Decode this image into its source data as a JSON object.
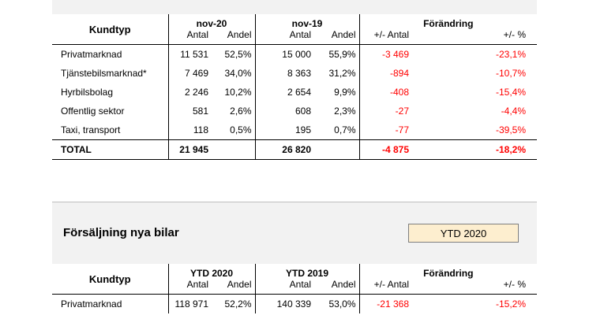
{
  "table1": {
    "col_kundtyp": "Kundtyp",
    "period1": "nov-20",
    "period2": "nov-19",
    "change": "Förändring",
    "sub_antal": "Antal",
    "sub_andel": "Andel",
    "sub_diff": "+/- Antal",
    "sub_pct": "+/- %",
    "rows": [
      {
        "label": "Privatmarknad",
        "a1": "11 531",
        "s1": "52,5%",
        "a2": "15 000",
        "s2": "55,9%",
        "d": "-3 469",
        "p": "-23,1%"
      },
      {
        "label": "Tjänstebilsmarknad*",
        "a1": "7 469",
        "s1": "34,0%",
        "a2": "8 363",
        "s2": "31,2%",
        "d": "-894",
        "p": "-10,7%"
      },
      {
        "label": "Hyrbilsbolag",
        "a1": "2 246",
        "s1": "10,2%",
        "a2": "2 654",
        "s2": "9,9%",
        "d": "-408",
        "p": "-15,4%"
      },
      {
        "label": "Offentlig sektor",
        "a1": "581",
        "s1": "2,6%",
        "a2": "608",
        "s2": "2,3%",
        "d": "-27",
        "p": "-4,4%"
      },
      {
        "label": "Taxi, transport",
        "a1": "118",
        "s1": "0,5%",
        "a2": "195",
        "s2": "0,7%",
        "d": "-77",
        "p": "-39,5%"
      }
    ],
    "total": {
      "label": "TOTAL",
      "a1": "21 945",
      "a2": "26 820",
      "d": "-4 875",
      "p": "-18,2%"
    }
  },
  "section2": {
    "title": "Försäljning nya bilar",
    "selector_value": "YTD 2020"
  },
  "table2": {
    "col_kundtyp": "Kundtyp",
    "period1": "YTD 2020",
    "period2": "YTD 2019",
    "change": "Förändring",
    "sub_antal": "Antal",
    "sub_andel": "Andel",
    "sub_diff": "+/- Antal",
    "sub_pct": "+/- %",
    "rows": [
      {
        "label": "Privatmarknad",
        "a1": "118 971",
        "s1": "52,2%",
        "a2": "140 339",
        "s2": "53,0%",
        "d": "-21 368",
        "p": "-15,2%"
      }
    ]
  },
  "colors": {
    "negative": "#ff0000",
    "band": "#f2f2f2",
    "selector_bg": "#fdeecf"
  }
}
